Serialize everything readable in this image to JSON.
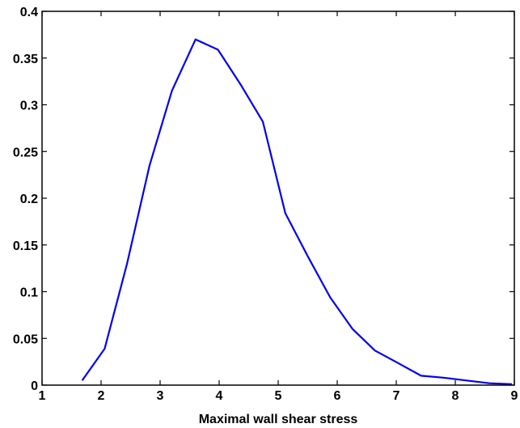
{
  "chart_data": {
    "type": "line",
    "title": "",
    "xlabel": "Maximal wall shear stress",
    "ylabel": "",
    "xlim": [
      1,
      9
    ],
    "ylim": [
      0,
      0.4
    ],
    "grid": false,
    "x_ticks": [
      1,
      2,
      3,
      4,
      5,
      6,
      7,
      8,
      9
    ],
    "x_tick_labels": [
      "1",
      "2",
      "3",
      "4",
      "5",
      "6",
      "7",
      "8",
      "9"
    ],
    "y_ticks": [
      0,
      0.05,
      0.1,
      0.15,
      0.2,
      0.25,
      0.3,
      0.35,
      0.4
    ],
    "y_tick_labels": [
      "0",
      "0.05",
      "0.1",
      "0.15",
      "0.2",
      "0.25",
      "0.3",
      "0.35",
      "0.4"
    ],
    "series": [
      {
        "color": "#0000ee",
        "x": [
          1.68,
          2.06,
          2.44,
          2.82,
          3.2,
          3.6,
          3.98,
          4.36,
          4.74,
          5.12,
          5.5,
          5.88,
          6.26,
          6.64,
          7.02,
          7.42,
          7.8,
          8.18,
          8.58,
          8.96
        ],
        "y": [
          0.005,
          0.039,
          0.13,
          0.235,
          0.315,
          0.37,
          0.359,
          0.322,
          0.282,
          0.184,
          0.138,
          0.094,
          0.06,
          0.037,
          0.024,
          0.01,
          0.008,
          0.005,
          0.002,
          0.001
        ]
      }
    ]
  }
}
